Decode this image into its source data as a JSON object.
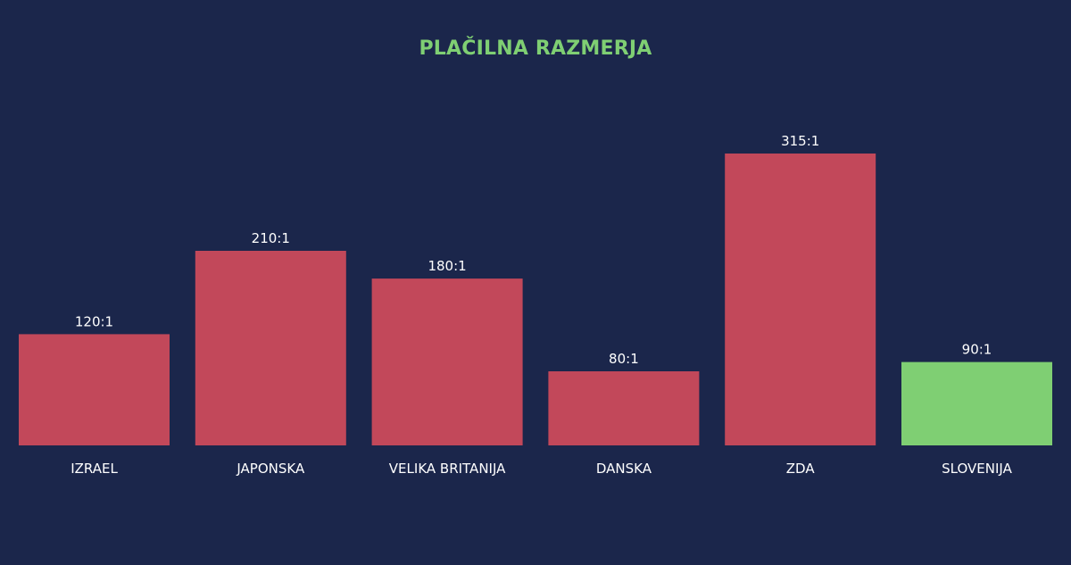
{
  "colors": {
    "background": "#1b264b",
    "title": "#7fcf73",
    "bar_default": "#c2485a",
    "bar_highlight": "#7fcf73",
    "text": "#ffffff"
  },
  "chart_data": {
    "type": "bar",
    "title": "PLAČILNA RAZMERJA",
    "xlabel": "",
    "ylabel": "",
    "grid": false,
    "legend": "none",
    "categories": [
      "IZRAEL",
      "JAPONSKA",
      "VELIKA BRITANIJA",
      "DANSKA",
      "ZDA",
      "SLOVENIJA"
    ],
    "values": [
      120,
      210,
      180,
      80,
      315,
      90
    ],
    "value_labels": [
      "120:1",
      "210:1",
      "180:1",
      "80:1",
      "315:1",
      "90:1"
    ],
    "highlighted_category": "SLOVENIJA",
    "ylim": [
      0,
      315
    ]
  }
}
